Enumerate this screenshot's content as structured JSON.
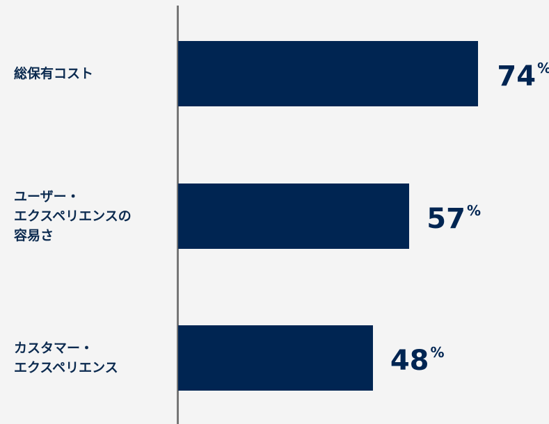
{
  "chart_data": {
    "type": "bar",
    "orientation": "horizontal",
    "categories": [
      [
        "総保有コスト"
      ],
      [
        "ユーザー・",
        "エクスペリエンスの",
        "容易さ"
      ],
      [
        "カスタマー・",
        "エクスペリエンス"
      ]
    ],
    "values": [
      74,
      57,
      48
    ],
    "unit": "%",
    "xlim": [
      0,
      80
    ],
    "grid": false,
    "legend": "none"
  },
  "colors": {
    "bar": "#002552",
    "label": "#0b2a4f",
    "axis": "#767676",
    "background": "#f4f4f4"
  }
}
